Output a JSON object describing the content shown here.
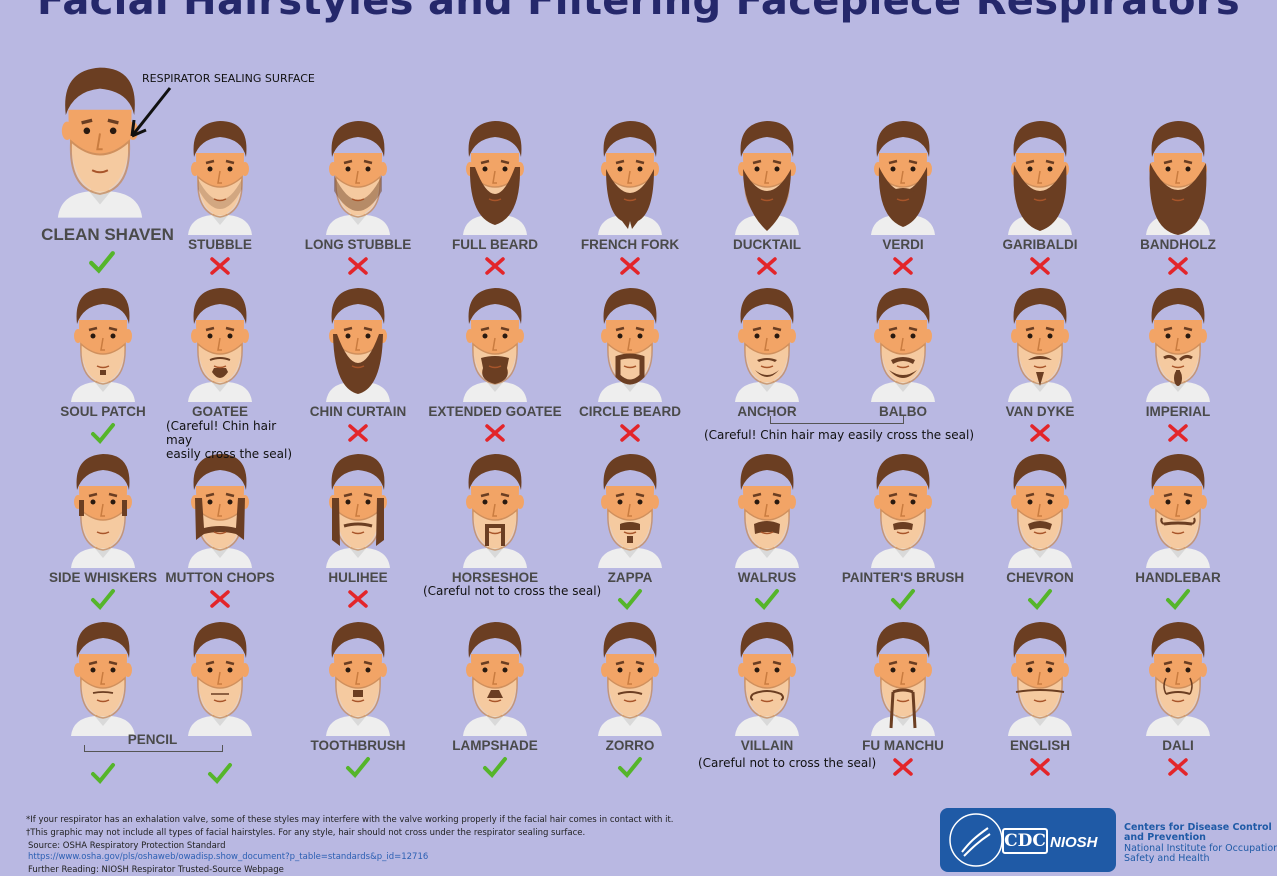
{
  "title": "Facial Hairstyles and Filtering Facepiece Respirators",
  "hero": {
    "label": "CLEAN SHAVEN",
    "seal_label": "RESPIRATOR SEALING SURFACE",
    "ok": true
  },
  "styles": [
    {
      "id": "stubble",
      "label": "STUBBLE",
      "ok": false,
      "row": 0,
      "col": 1,
      "hair": "stubble"
    },
    {
      "id": "long-stubble",
      "label": "LONG STUBBLE",
      "ok": false,
      "row": 0,
      "col": 2,
      "hair": "longstubble"
    },
    {
      "id": "full-beard",
      "label": "FULL BEARD",
      "ok": false,
      "row": 0,
      "col": 3,
      "hair": "fullbeard"
    },
    {
      "id": "french-fork",
      "label": "FRENCH FORK",
      "ok": false,
      "row": 0,
      "col": 4,
      "hair": "fork"
    },
    {
      "id": "ducktail",
      "label": "DUCKTAIL",
      "ok": false,
      "row": 0,
      "col": 5,
      "hair": "ducktail"
    },
    {
      "id": "verdi",
      "label": "VERDI",
      "ok": false,
      "row": 0,
      "col": 6,
      "hair": "verdi"
    },
    {
      "id": "garibaldi",
      "label": "GARIBALDI",
      "ok": false,
      "row": 0,
      "col": 7,
      "hair": "garibaldi"
    },
    {
      "id": "bandholz",
      "label": "BANDHOLZ",
      "ok": false,
      "row": 0,
      "col": 8,
      "hair": "bandholz"
    },
    {
      "id": "soul-patch",
      "label": "SOUL PATCH",
      "ok": true,
      "row": 1,
      "col": 0,
      "hair": "soulpatch"
    },
    {
      "id": "goatee",
      "label": "GOATEE",
      "ok": null,
      "row": 1,
      "col": 1,
      "hair": "goatee"
    },
    {
      "id": "chin-curtain",
      "label": "CHIN CURTAIN",
      "ok": false,
      "row": 1,
      "col": 2,
      "hair": "chincurtain"
    },
    {
      "id": "extended-goatee",
      "label": "EXTENDED GOATEE",
      "ok": false,
      "row": 1,
      "col": 3,
      "hair": "extgoatee"
    },
    {
      "id": "circle-beard",
      "label": "CIRCLE BEARD",
      "ok": false,
      "row": 1,
      "col": 4,
      "hair": "circle"
    },
    {
      "id": "anchor",
      "label": "ANCHOR",
      "ok": null,
      "row": 1,
      "col": 5,
      "hair": "anchor"
    },
    {
      "id": "balbo",
      "label": "BALBO",
      "ok": null,
      "row": 1,
      "col": 6,
      "hair": "balbo"
    },
    {
      "id": "van-dyke",
      "label": "VAN DYKE",
      "ok": false,
      "row": 1,
      "col": 7,
      "hair": "vandyke"
    },
    {
      "id": "imperial",
      "label": "IMPERIAL",
      "ok": false,
      "row": 1,
      "col": 8,
      "hair": "imperial"
    },
    {
      "id": "side-whiskers",
      "label": "SIDE WHISKERS",
      "ok": true,
      "row": 2,
      "col": 0,
      "hair": "whiskers"
    },
    {
      "id": "mutton-chops",
      "label": "MUTTON CHOPS",
      "ok": false,
      "row": 2,
      "col": 1,
      "hair": "mutton"
    },
    {
      "id": "hulihee",
      "label": "HULIHEE",
      "ok": false,
      "row": 2,
      "col": 2,
      "hair": "hulihee"
    },
    {
      "id": "horseshoe",
      "label": "HORSESHOE",
      "ok": null,
      "row": 2,
      "col": 3,
      "hair": "horseshoe"
    },
    {
      "id": "zappa",
      "label": "ZAPPA",
      "ok": true,
      "row": 2,
      "col": 4,
      "hair": "zappa"
    },
    {
      "id": "walrus",
      "label": "WALRUS",
      "ok": true,
      "row": 2,
      "col": 5,
      "hair": "walrus"
    },
    {
      "id": "painters-brush",
      "label": "PAINTER'S BRUSH",
      "ok": true,
      "row": 2,
      "col": 6,
      "hair": "painter"
    },
    {
      "id": "chevron",
      "label": "CHEVRON",
      "ok": true,
      "row": 2,
      "col": 7,
      "hair": "chevron"
    },
    {
      "id": "handlebar",
      "label": "HANDLEBAR",
      "ok": true,
      "row": 2,
      "col": 8,
      "hair": "handlebar"
    },
    {
      "id": "pencil-a",
      "label": "",
      "ok": true,
      "row": 3,
      "col": 0,
      "hair": "pencil"
    },
    {
      "id": "pencil-b",
      "label": "",
      "ok": true,
      "row": 3,
      "col": 1,
      "hair": "pencil2"
    },
    {
      "id": "toothbrush",
      "label": "TOOTHBRUSH",
      "ok": true,
      "row": 3,
      "col": 2,
      "hair": "toothbrush"
    },
    {
      "id": "lampshade",
      "label": "LAMPSHADE",
      "ok": true,
      "row": 3,
      "col": 3,
      "hair": "lampshade"
    },
    {
      "id": "zorro",
      "label": "ZORRO",
      "ok": true,
      "row": 3,
      "col": 4,
      "hair": "zorro"
    },
    {
      "id": "villain",
      "label": "VILLAIN",
      "ok": null,
      "row": 3,
      "col": 5,
      "hair": "villain"
    },
    {
      "id": "fu-manchu",
      "label": "FU MANCHU",
      "ok": false,
      "row": 3,
      "col": 6,
      "hair": "fumanchu"
    },
    {
      "id": "english",
      "label": "ENGLISH",
      "ok": false,
      "row": 3,
      "col": 7,
      "hair": "english"
    },
    {
      "id": "dali",
      "label": "DALI",
      "ok": false,
      "row": 3,
      "col": 8,
      "hair": "dali"
    }
  ],
  "notes": {
    "goatee": "(Careful! Chin hair may\neasily cross the seal)",
    "anchor_balbo": "(Careful! Chin hair may easily cross the seal)",
    "horseshoe": "(Careful not to cross the seal)",
    "villain": "(Careful not to cross the seal)",
    "pencil": "PENCIL"
  },
  "footer": {
    "line1": "*If your respirator has an exhalation valve, some of these styles may interfere with the valve working properly if the facial hair comes in contact with it.",
    "line2": "†This graphic may not include all types of facial hairstyles. For any style, hair should not cross under the respirator sealing surface.",
    "source": "Source: OSHA Respiratory Protection Standard",
    "url": "https://www.osha.gov/pls/oshaweb/owadisp.show_document?p_table=standards&p_id=12716",
    "further": "Further Reading: NIOSH Respirator Trusted-Source Webpage"
  },
  "org": {
    "cdc": "CDC",
    "niosh": "NIOSH",
    "line1": "Centers for Disease Control",
    "line2": "and Prevention",
    "line3": "National Institute for Occupational",
    "line4": "Safety and Health"
  },
  "colors": {
    "background": "#b9b8e2",
    "title": "#25286b",
    "skin": "#f2a466",
    "hair": "#6b3e22",
    "seal": "#f7d7b4",
    "check": "#55b52a",
    "cross": "#e3252a",
    "shirt": "#eeeeee"
  }
}
